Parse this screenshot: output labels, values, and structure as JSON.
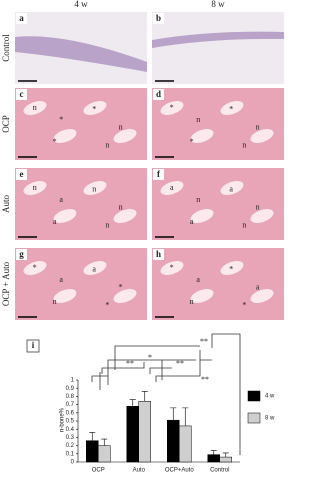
{
  "figure": {
    "columns": [
      "4 w",
      "8 w"
    ],
    "rows": [
      "Control",
      "OCP",
      "Auto",
      "OCP + Auto"
    ],
    "panels": [
      {
        "letter": "a",
        "marks": []
      },
      {
        "letter": "b",
        "marks": []
      },
      {
        "letter": "c",
        "marks": [
          "n",
          "*",
          "*",
          "n",
          "*",
          "n"
        ]
      },
      {
        "letter": "d",
        "marks": [
          "*",
          "n",
          "*",
          "n",
          "*",
          "n"
        ]
      },
      {
        "letter": "e",
        "marks": [
          "n",
          "a",
          "n",
          "n",
          "a",
          "n"
        ]
      },
      {
        "letter": "f",
        "marks": [
          "a",
          "n",
          "a",
          "n",
          "a",
          "n"
        ]
      },
      {
        "letter": "g",
        "marks": [
          "*",
          "a",
          "a",
          "*",
          "n",
          "*"
        ]
      },
      {
        "letter": "h",
        "marks": [
          "*",
          "a",
          "*",
          "a",
          "n",
          "*"
        ]
      }
    ]
  },
  "chart_data": {
    "type": "bar",
    "panel": "i",
    "y_label": "n-bone%",
    "categories": [
      "OCP",
      "Auto",
      "OCP+Auto",
      "Control"
    ],
    "series": [
      {
        "name": "4 w",
        "color": "#000000",
        "values": [
          0.26,
          0.68,
          0.51,
          0.09
        ],
        "errors": [
          0.1,
          0.08,
          0.15,
          0.05
        ]
      },
      {
        "name": "8 w",
        "color": "#cfcfcf",
        "values": [
          0.2,
          0.74,
          0.44,
          0.06
        ],
        "errors": [
          0.08,
          0.12,
          0.22,
          0.05
        ]
      }
    ],
    "significance": [
      "*",
      "**",
      "**",
      "**",
      "**"
    ],
    "ylim": [
      0,
      1
    ],
    "yticks": [
      0,
      0.1,
      0.2,
      0.3,
      0.4,
      0.5,
      0.6,
      0.7,
      0.8,
      0.9,
      1
    ]
  }
}
